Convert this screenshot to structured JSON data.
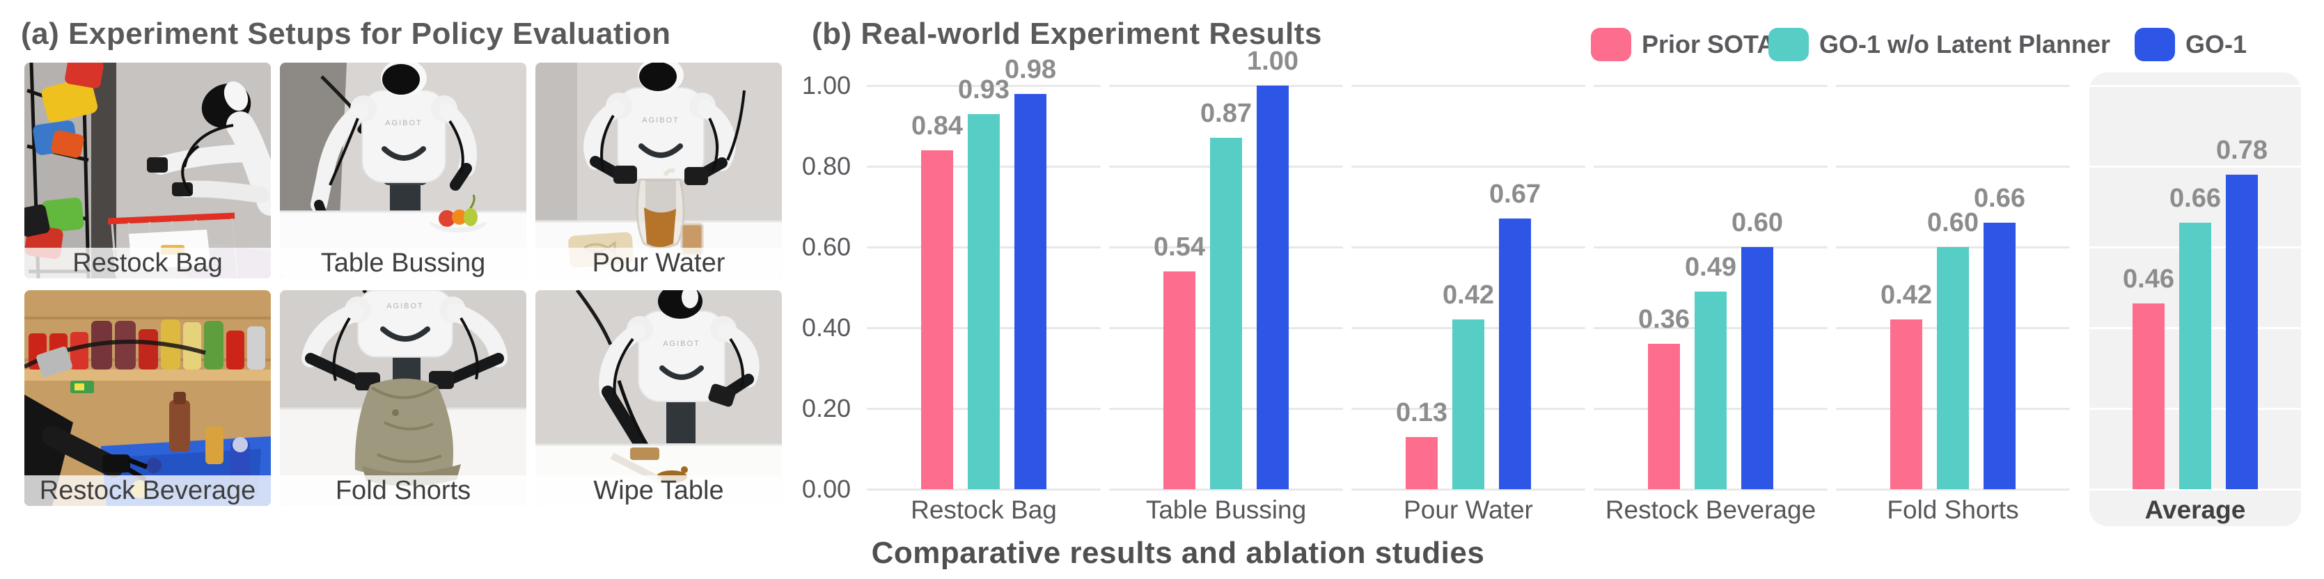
{
  "panel_a": {
    "title": "(a) Experiment Setups for Policy Evaluation",
    "photos": [
      {
        "label": "Restock Bag"
      },
      {
        "label": "Table Bussing"
      },
      {
        "label": "Pour Water"
      },
      {
        "label": "Restock Beverage"
      },
      {
        "label": "Fold Shorts"
      },
      {
        "label": "Wipe Table"
      }
    ],
    "robot_brand": "AGIBOT"
  },
  "panel_b": {
    "title": "(b) Real-world Experiment Results",
    "legend": [
      {
        "label": "Prior SOTA",
        "color": "#FD6D8E"
      },
      {
        "label": "GO-1 w/o Latent Planner",
        "color": "#56CEC5"
      },
      {
        "label": "GO-1",
        "color": "#2D55E6"
      }
    ]
  },
  "caption": "Comparative results and ablation studies",
  "colors": {
    "pink": "#FD6D8E",
    "teal": "#56CEC5",
    "blue": "#2D55E6",
    "gridline": "#e8e8e8",
    "value_label": "#8c8c8c",
    "axis_text": "#55575a",
    "title_text": "#595959",
    "average_highlight_bg": "#f2f2f3"
  },
  "chart_data": {
    "type": "bar",
    "title": "(b) Real-world Experiment Results",
    "categories": [
      "Restock Bag",
      "Table Bussing",
      "Pour Water",
      "Restock Beverage",
      "Fold Shorts",
      "Average"
    ],
    "series": [
      {
        "name": "Prior SOTA",
        "color": "#FD6D8E",
        "values": [
          0.84,
          0.54,
          0.13,
          0.36,
          0.42,
          0.46
        ]
      },
      {
        "name": "GO-1 w/o Latent Planner",
        "color": "#56CEC5",
        "values": [
          0.93,
          0.87,
          0.42,
          0.49,
          0.6,
          0.66
        ]
      },
      {
        "name": "GO-1",
        "color": "#2D55E6",
        "values": [
          0.98,
          1.0,
          0.67,
          0.6,
          0.66,
          0.78
        ]
      }
    ],
    "xlabel": "",
    "ylabel": "",
    "ylim": [
      0.0,
      1.0
    ],
    "yticks": [
      "1.00",
      "0.80",
      "0.60",
      "0.40",
      "0.20",
      "0.00"
    ],
    "grid": true,
    "legend_position": "top-right",
    "highlight_category": "Average",
    "value_labels": true,
    "value_label_decimals": 2
  }
}
